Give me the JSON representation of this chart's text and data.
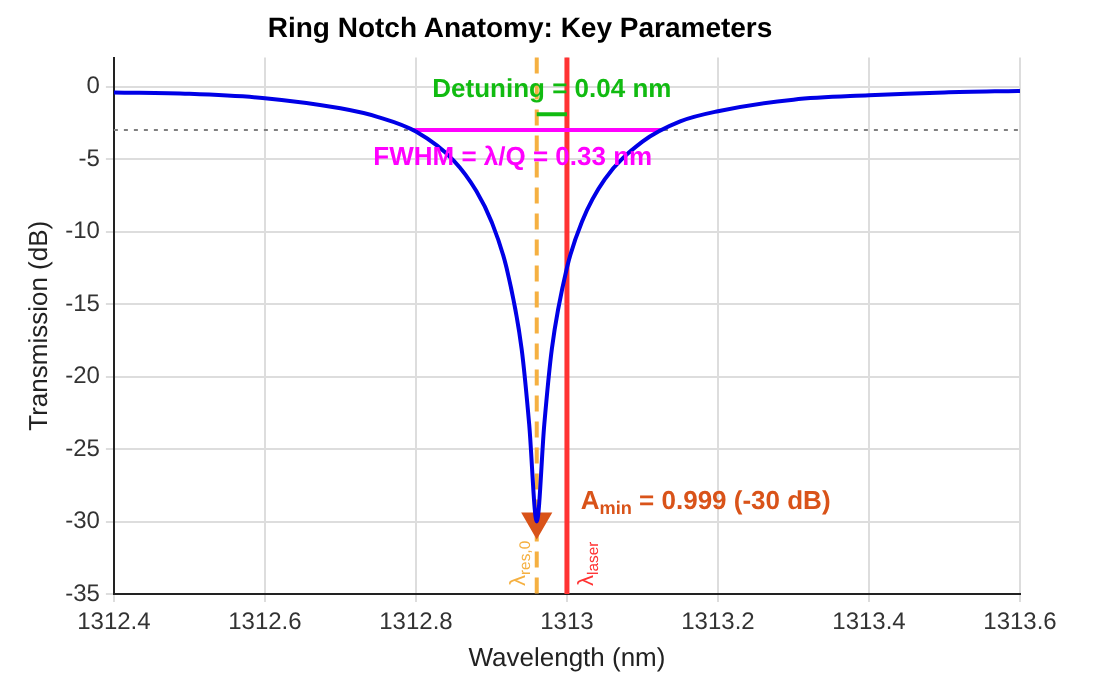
{
  "chart_data": {
    "type": "line",
    "title": "Ring Notch Anatomy: Key Parameters",
    "xlabel": "Wavelength (nm)",
    "ylabel": "Transmission (dB)",
    "xlim": [
      1312.4,
      1313.6
    ],
    "xticks": [
      1312.4,
      1312.6,
      1312.8,
      1313,
      1313.2,
      1313.4,
      1313.6
    ],
    "ylim": [
      -35,
      2
    ],
    "yticks": [
      0,
      -5,
      -10,
      -15,
      -20,
      -25,
      -30,
      -35
    ],
    "grid": true,
    "legend": false,
    "marker": "none",
    "line_style": "solid",
    "series": [
      {
        "color": "#0000e6",
        "x": [
          1312.4,
          1312.5,
          1312.6,
          1312.7,
          1312.75,
          1312.8,
          1312.85,
          1312.88,
          1312.9,
          1312.92,
          1312.94,
          1312.95,
          1312.96,
          1312.97,
          1312.98,
          1313,
          1313.02,
          1313.05,
          1313.1,
          1313.15,
          1313.2,
          1313.3,
          1313.4,
          1313.5,
          1313.6
        ],
        "values": [
          -0.4,
          -0.5,
          -0.8,
          -1.5,
          -2.1,
          -3.1,
          -5.1,
          -7.2,
          -9.3,
          -12.5,
          -18.1,
          -23.3,
          -30,
          -23.3,
          -18.1,
          -12.5,
          -9.3,
          -6.4,
          -3.8,
          -2.4,
          -1.7,
          -0.9,
          -0.6,
          -0.4,
          -0.3
        ]
      },
      {
        "type": "line",
        "color": "#11bb11",
        "x": [
          1312.96,
          1313
        ],
        "values": [
          -1.9,
          -1.9
        ]
      },
      {
        "type": "line",
        "color": "#ff00ff",
        "x": [
          1312.795,
          1313.125
        ],
        "values": [
          -3,
          -3
        ]
      },
      {
        "type": "scatter",
        "marker": "triangle",
        "color": "#d95319",
        "x": [
          1312.96
        ],
        "values": [
          -30
        ]
      }
    ],
    "ref_lines": [
      {
        "axis": "y",
        "value": -3,
        "color": "#808080",
        "line_style": "dotted"
      },
      {
        "axis": "x",
        "value": 1312.96,
        "label": "λ$_{res,0}$",
        "color": "#f5b041",
        "line_style": "dashed"
      },
      {
        "axis": "x",
        "value": 1313,
        "label": "λ$_{laser}$",
        "color": "#ff3333",
        "line_style": "solid"
      }
    ],
    "annotations": [
      "Detuning = 0.04 nm",
      "FWHM = λ/Q = 0.33 nm",
      "A$_{min}$ = 0.999 (-30 dB)"
    ]
  }
}
